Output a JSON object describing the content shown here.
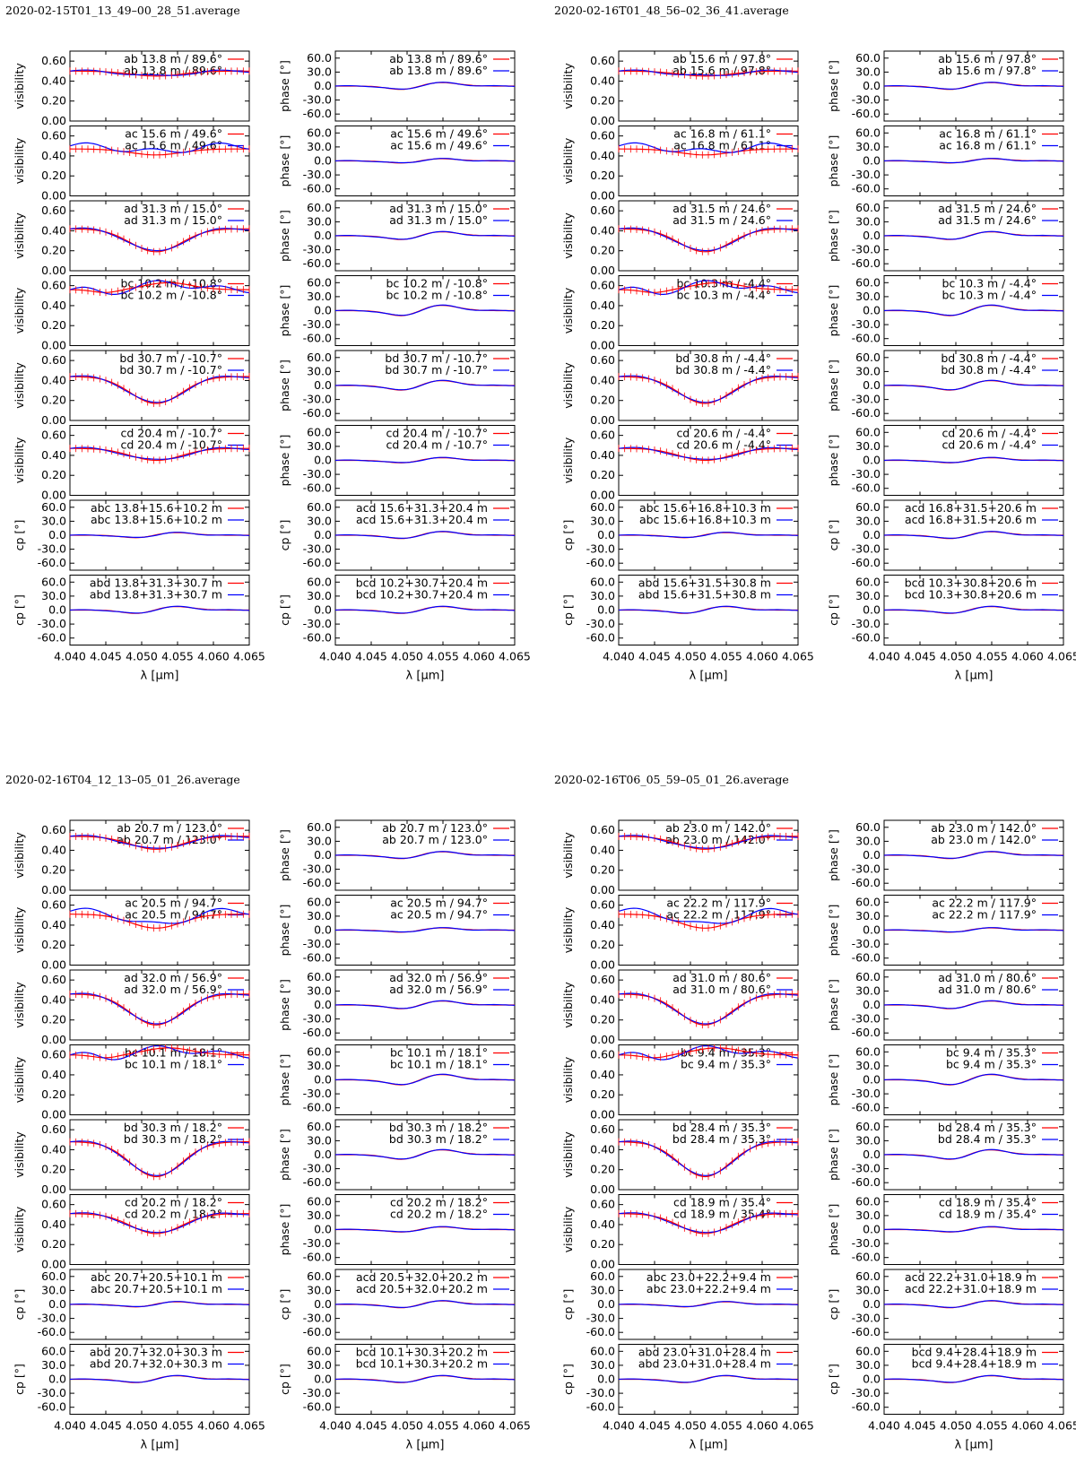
{
  "figure": {
    "type": "multi-panel line plot",
    "x_tick_labels": [
      "4.040",
      "4.045",
      "4.050",
      "4.055",
      "4.060",
      "4.065"
    ],
    "x_label": "λ [µm]",
    "visibility_tick_labels": [
      "0.60",
      "0.40",
      "0.20",
      "0.00"
    ],
    "phase_tick_labels": [
      "60.0",
      "30.0",
      "0.0",
      "-30.0",
      "-60.0"
    ],
    "visibility_ylabel": "visibility",
    "phase_ylabel": "phase [°]",
    "cp_ylabel": "cp [°]",
    "series_colors": [
      "#ff0000",
      "#0000ff"
    ]
  },
  "chart_data": [
    {
      "type": "line",
      "title": "2020-02-15T01_13_49–00_28_51.average",
      "xlim": [
        4.04,
        4.065
      ],
      "visibility_ylim": [
        0,
        0.7
      ],
      "phase_ylim": [
        -75,
        75
      ],
      "rows": [
        {
          "kind": "visibility",
          "left_legend": "ab 13.8 m / 89.6°",
          "right_legend": "ab 13.8 m / 89.6°"
        },
        {
          "kind": "visibility",
          "left_legend": "ac 15.6 m / 49.6°",
          "right_legend": "ac 15.6 m / 49.6°"
        },
        {
          "kind": "visibility",
          "left_legend": "ad 31.3 m / 15.0°",
          "right_legend": "ad 31.3 m / 15.0°"
        },
        {
          "kind": "visibility",
          "left_legend": "bc 10.2 m / -10.8°",
          "right_legend": "bc 10.2 m / -10.8°"
        },
        {
          "kind": "visibility",
          "left_legend": "bd 30.7 m / -10.7°",
          "right_legend": "bd 30.7 m / -10.7°"
        },
        {
          "kind": "visibility",
          "left_legend": "cd 20.4 m / -10.7°",
          "right_legend": "cd 20.4 m / -10.7°"
        },
        {
          "kind": "cp",
          "left_legend": "abc 13.8+15.6+10.2 m",
          "right_legend": "acd 15.6+31.3+20.4 m"
        },
        {
          "kind": "cp",
          "left_legend": "abd 13.8+31.3+30.7 m",
          "right_legend": "bcd 10.2+30.7+20.4 m"
        }
      ]
    },
    {
      "type": "line",
      "title": "2020-02-16T01_48_56–02_36_41.average",
      "xlim": [
        4.04,
        4.065
      ],
      "visibility_ylim": [
        0,
        0.7
      ],
      "phase_ylim": [
        -75,
        75
      ],
      "rows": [
        {
          "kind": "visibility",
          "left_legend": "ab 15.6 m / 97.8°",
          "right_legend": "ab 15.6 m / 97.8°"
        },
        {
          "kind": "visibility",
          "left_legend": "ac 16.8 m / 61.1°",
          "right_legend": "ac 16.8 m / 61.1°"
        },
        {
          "kind": "visibility",
          "left_legend": "ad 31.5 m / 24.6°",
          "right_legend": "ad 31.5 m / 24.6°"
        },
        {
          "kind": "visibility",
          "left_legend": "bc 10.3 m / -4.4°",
          "right_legend": "bc 10.3 m / -4.4°"
        },
        {
          "kind": "visibility",
          "left_legend": "bd 30.8 m / -4.4°",
          "right_legend": "bd 30.8 m / -4.4°"
        },
        {
          "kind": "visibility",
          "left_legend": "cd 20.6 m / -4.4°",
          "right_legend": "cd 20.6 m / -4.4°"
        },
        {
          "kind": "cp",
          "left_legend": "abc 15.6+16.8+10.3 m",
          "right_legend": "acd 16.8+31.5+20.6 m"
        },
        {
          "kind": "cp",
          "left_legend": "abd 15.6+31.5+30.8 m",
          "right_legend": "bcd 10.3+30.8+20.6 m"
        }
      ]
    },
    {
      "type": "line",
      "title": "2020-02-16T04_12_13–05_01_26.average",
      "xlim": [
        4.04,
        4.065
      ],
      "visibility_ylim": [
        0,
        0.7
      ],
      "phase_ylim": [
        -75,
        75
      ],
      "rows": [
        {
          "kind": "visibility",
          "left_legend": "ab 20.7 m / 123.0°",
          "right_legend": "ab 20.7 m / 123.0°"
        },
        {
          "kind": "visibility",
          "left_legend": "ac 20.5 m / 94.7°",
          "right_legend": "ac 20.5 m / 94.7°"
        },
        {
          "kind": "visibility",
          "left_legend": "ad 32.0 m / 56.9°",
          "right_legend": "ad 32.0 m / 56.9°"
        },
        {
          "kind": "visibility",
          "left_legend": "bc 10.1 m / 18.1°",
          "right_legend": "bc 10.1 m / 18.1°"
        },
        {
          "kind": "visibility",
          "left_legend": "bd 30.3 m / 18.2°",
          "right_legend": "bd 30.3 m / 18.2°"
        },
        {
          "kind": "visibility",
          "left_legend": "cd 20.2 m / 18.2°",
          "right_legend": "cd 20.2 m / 18.2°"
        },
        {
          "kind": "cp",
          "left_legend": "abc 20.7+20.5+10.1 m",
          "right_legend": "acd 20.5+32.0+20.2 m"
        },
        {
          "kind": "cp",
          "left_legend": "abd 20.7+32.0+30.3 m",
          "right_legend": "bcd 10.1+30.3+20.2 m"
        }
      ]
    },
    {
      "type": "line",
      "title": "2020-02-16T06_05_59–05_01_26.average",
      "xlim": [
        4.04,
        4.065
      ],
      "visibility_ylim": [
        0,
        0.7
      ],
      "phase_ylim": [
        -75,
        75
      ],
      "rows": [
        {
          "kind": "visibility",
          "left_legend": "ab 23.0 m / 142.0°",
          "right_legend": "ab 23.0 m / 142.0°"
        },
        {
          "kind": "visibility",
          "left_legend": "ac 22.2 m / 117.9°",
          "right_legend": "ac 22.2 m / 117.9°"
        },
        {
          "kind": "visibility",
          "left_legend": "ad 31.0 m / 80.6°",
          "right_legend": "ad 31.0 m / 80.6°"
        },
        {
          "kind": "visibility",
          "left_legend": "bc 9.4 m / 35.3°",
          "right_legend": "bc 9.4 m / 35.3°"
        },
        {
          "kind": "visibility",
          "left_legend": "bd 28.4 m / 35.3°",
          "right_legend": "bd 28.4 m / 35.3°"
        },
        {
          "kind": "visibility",
          "left_legend": "cd 18.9 m / 35.4°",
          "right_legend": "cd 18.9 m / 35.4°"
        },
        {
          "kind": "cp",
          "left_legend": "abc 23.0+22.2+9.4 m",
          "right_legend": "acd 22.2+31.0+18.9 m"
        },
        {
          "kind": "cp",
          "left_legend": "abd 23.0+31.0+28.4 m",
          "right_legend": "bcd 9.4+28.4+18.9 m"
        }
      ]
    }
  ]
}
